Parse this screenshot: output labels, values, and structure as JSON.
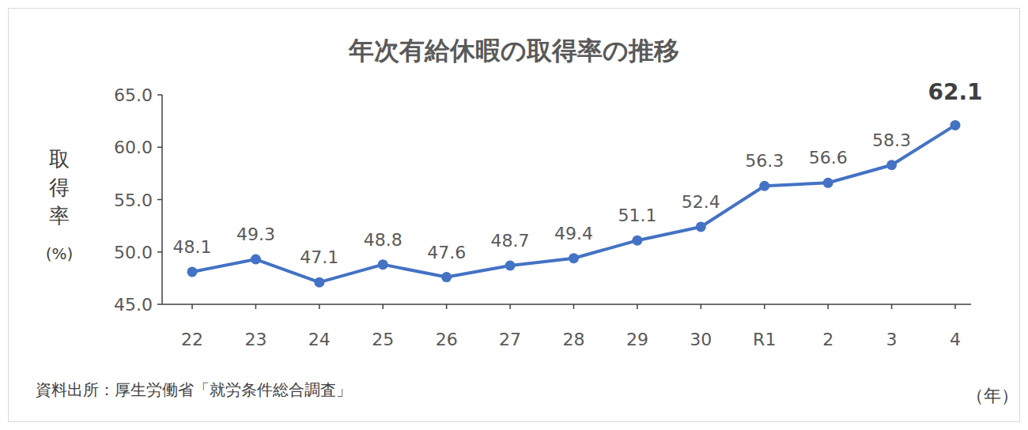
{
  "chart_data": {
    "type": "line",
    "title": "年次有給休暇の取得率の推移",
    "ylabel": "取得率(%)",
    "xlabel": "（年）",
    "source": "資料出所：厚生労働省「就労条件総合調査」",
    "categories": [
      "22",
      "23",
      "24",
      "25",
      "26",
      "27",
      "28",
      "29",
      "30",
      "R1",
      "2",
      "3",
      "4"
    ],
    "values": [
      48.1,
      49.3,
      47.1,
      48.8,
      47.6,
      48.7,
      49.4,
      51.1,
      52.4,
      56.3,
      56.6,
      58.3,
      62.1
    ],
    "color": "#4472c4",
    "marker": "circle",
    "line_style": "solid",
    "ylim": [
      45,
      65
    ],
    "yticks": [
      {
        "value": 45,
        "label": "45.0"
      },
      {
        "value": 50,
        "label": "50.0"
      },
      {
        "value": 55,
        "label": "55.0"
      },
      {
        "value": 60,
        "label": "60.0"
      },
      {
        "value": 65,
        "label": "65.0"
      }
    ],
    "grid": false,
    "data_labels": true
  }
}
